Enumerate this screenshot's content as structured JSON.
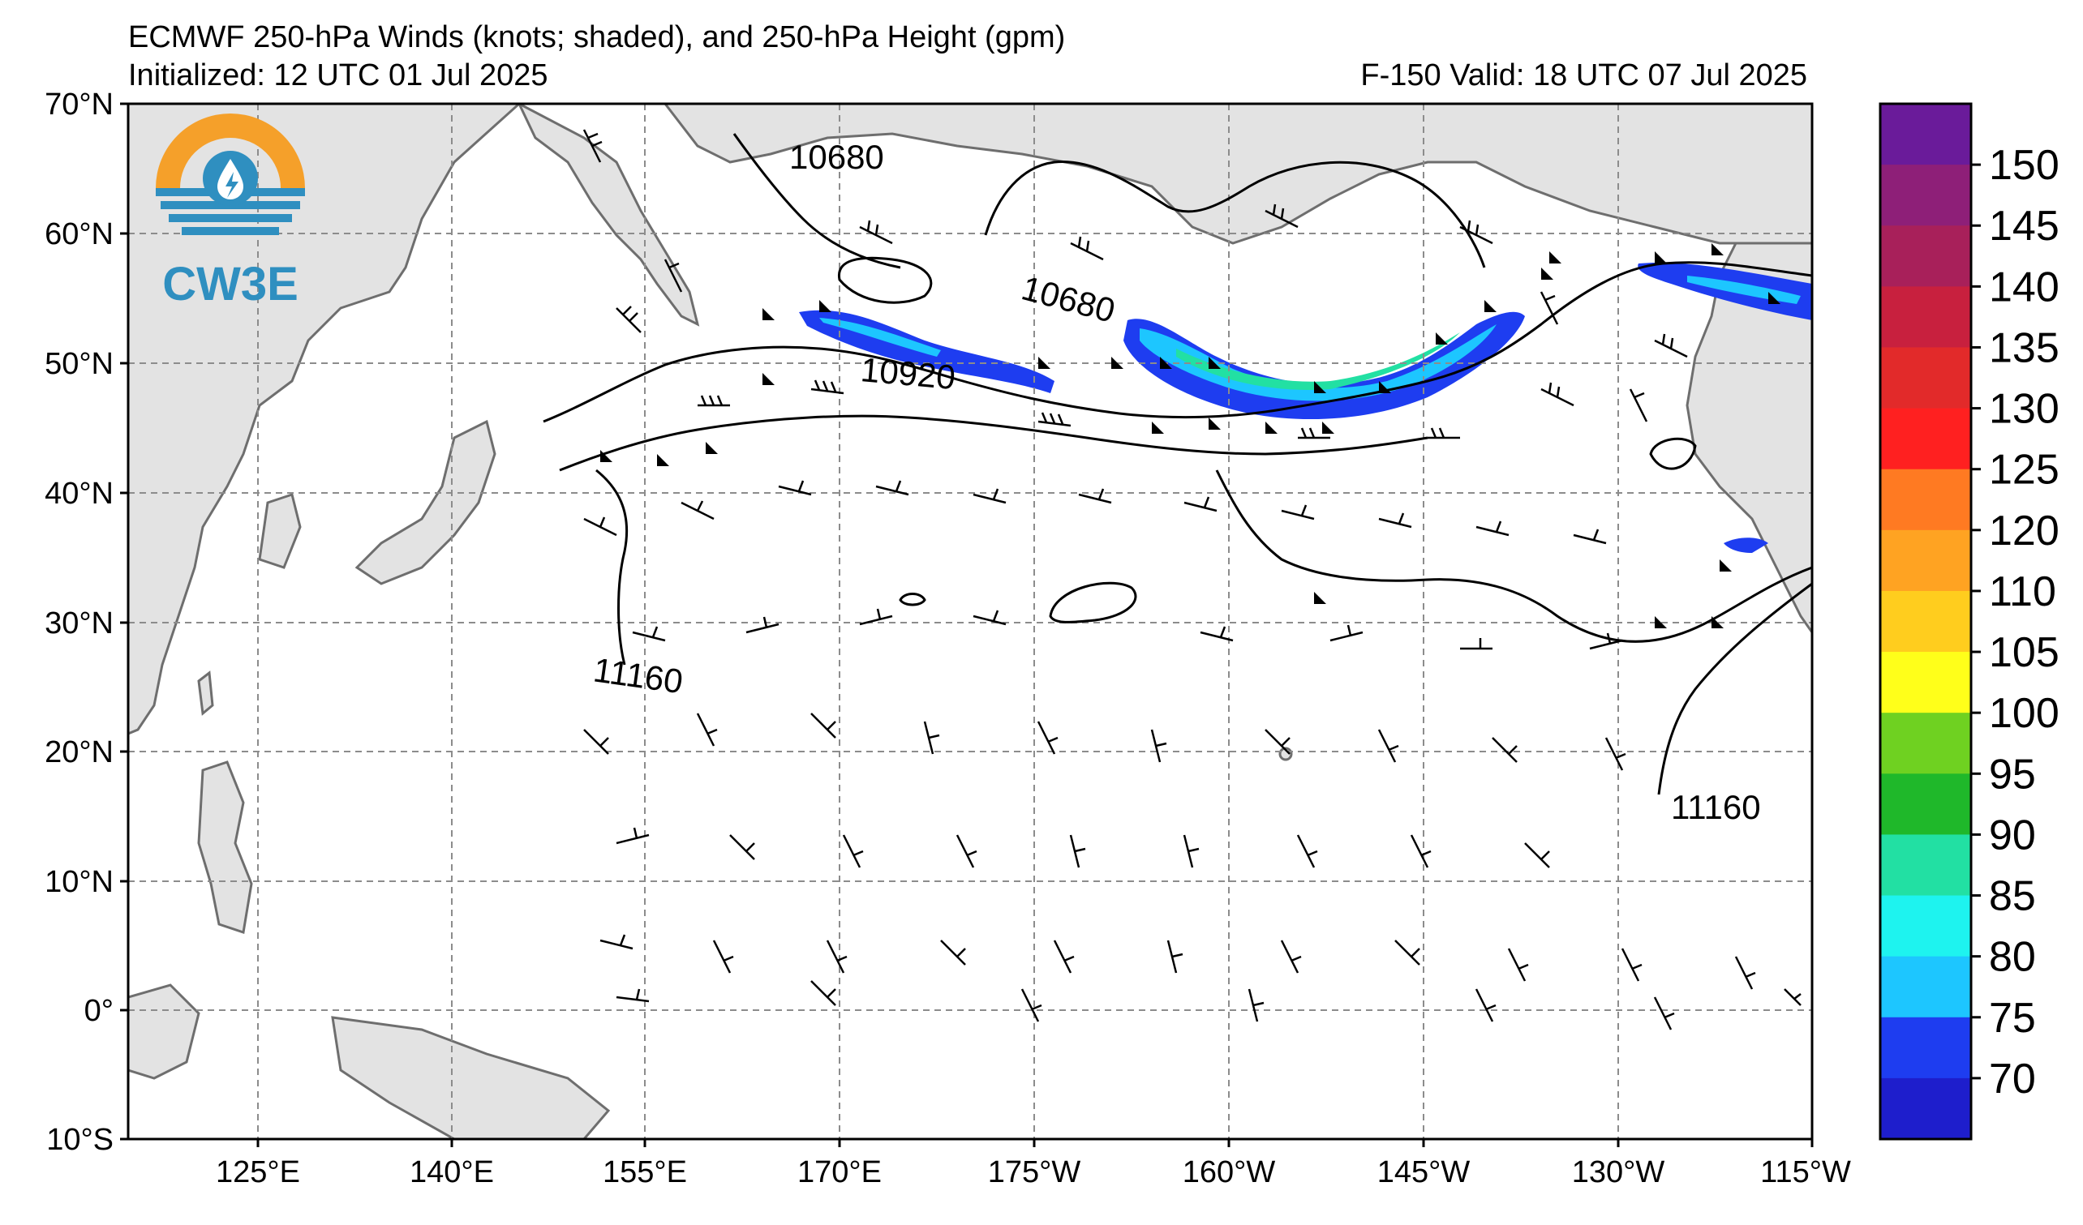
{
  "header": {
    "title": "ECMWF 250-hPa Winds (knots; shaded), and 250-hPa Height (gpm)",
    "initialized": "Initialized: 12 UTC 01 Jul 2025",
    "valid": "F-150  Valid: 18 UTC 07 Jul 2025"
  },
  "logo": {
    "text": "CW3E",
    "colors": {
      "orange": "#f5a02a",
      "blue": "#2f8fc0"
    }
  },
  "map": {
    "lat_labels": [
      "70°N",
      "60°N",
      "50°N",
      "40°N",
      "30°N",
      "20°N",
      "10°N",
      "0°",
      "10°S"
    ],
    "lon_labels": [
      "125°E",
      "140°E",
      "155°E",
      "170°E",
      "175°W",
      "160°W",
      "145°W",
      "130°W",
      "115°W"
    ],
    "contour_labels": [
      "10680",
      "10680",
      "10920",
      "11160",
      "11160"
    ],
    "land_color": "#e3e3e3",
    "coast_color": "#6e6e6e"
  },
  "colorbar": {
    "labels": [
      "150",
      "145",
      "140",
      "135",
      "130",
      "125",
      "120",
      "110",
      "105",
      "100",
      "95",
      "90",
      "85",
      "80",
      "75",
      "70"
    ],
    "colors": [
      "#6a1b9a",
      "#8e1f78",
      "#a8205a",
      "#c8203e",
      "#e22a2a",
      "#ff2020",
      "#ff7a22",
      "#ffa322",
      "#ffcd1e",
      "#ffff1a",
      "#6fd121",
      "#1fb82a",
      "#22e0a3",
      "#1ef3ef",
      "#1dc6ff",
      "#1e3df0",
      "#1e1ecc"
    ]
  }
}
